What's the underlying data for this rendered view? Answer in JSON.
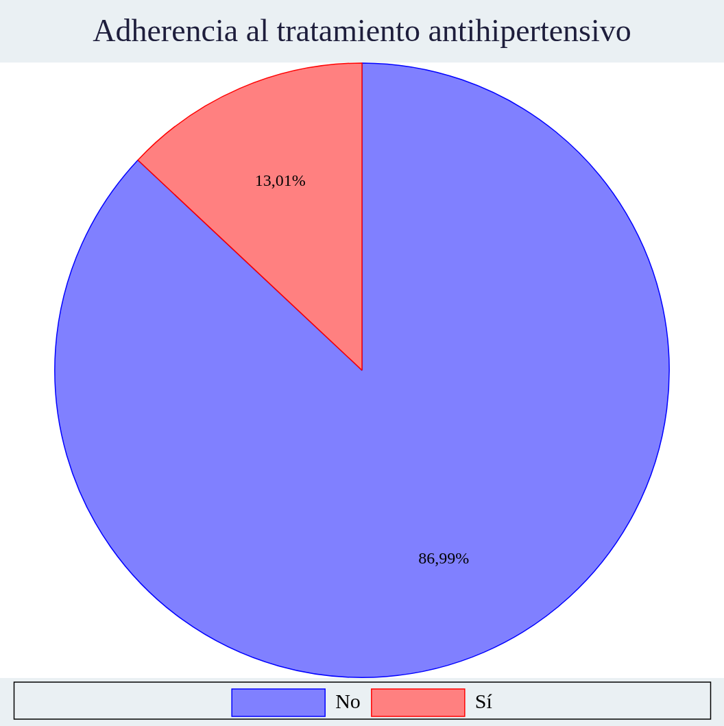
{
  "chart_data": {
    "type": "pie",
    "title": "Adherencia al tratamiento antihipertensivo",
    "categories": [
      "No",
      "Sí"
    ],
    "values": [
      86.99,
      13.01
    ],
    "colors": [
      "#8080ff",
      "#ff8080"
    ],
    "value_labels": [
      "86,99%",
      "13,01%"
    ],
    "legend": "bottom"
  }
}
